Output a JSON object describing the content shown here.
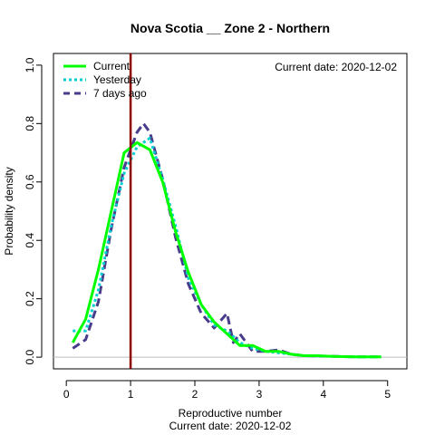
{
  "chart_data": {
    "type": "line",
    "title": "Nova Scotia __ Zone 2 - Northern",
    "xlabel": "Reproductive number",
    "xlabel_sub": "Current date:  2020-12-02",
    "ylabel": "Probability density",
    "annotation": "Current date:  2020-12-02",
    "xlim": [
      -0.2,
      5.3
    ],
    "ylim": [
      -0.04,
      1.04
    ],
    "xticks": [
      0,
      1,
      2,
      3,
      4,
      5
    ],
    "yticks": [
      0.0,
      0.2,
      0.4,
      0.6,
      0.8,
      1.0
    ],
    "ytick_labels": [
      "0.0",
      "0.2",
      "0.4",
      "0.6",
      "0.8",
      "1.0"
    ],
    "reference_line": {
      "x": 1.0,
      "color": "#8b0000"
    },
    "baseline": {
      "y": 0.0,
      "color": "#bebebe"
    },
    "legend_position": "top-left",
    "series": [
      {
        "name": "Current",
        "color": "#00ff00",
        "style": "solid",
        "x": [
          0.1,
          0.3,
          0.5,
          0.7,
          0.9,
          1.1,
          1.3,
          1.5,
          1.7,
          1.9,
          2.1,
          2.3,
          2.5,
          2.7,
          2.9,
          3.1,
          3.3,
          3.5,
          3.7,
          3.9,
          4.1,
          4.3,
          4.5,
          4.7,
          4.9
        ],
        "y": [
          0.05,
          0.13,
          0.3,
          0.5,
          0.7,
          0.735,
          0.71,
          0.6,
          0.43,
          0.29,
          0.18,
          0.12,
          0.08,
          0.04,
          0.04,
          0.02,
          0.02,
          0.01,
          0.005,
          0.005,
          0.003,
          0.002,
          0.001,
          0.001,
          0.001
        ]
      },
      {
        "name": "Yesterday",
        "color": "#00ced1",
        "style": "dotted",
        "x": [
          0.1,
          0.3,
          0.5,
          0.7,
          0.9,
          1.1,
          1.3,
          1.5,
          1.7,
          1.9,
          2.1,
          2.3,
          2.5,
          2.7,
          2.9,
          3.1,
          3.3,
          3.5,
          3.7,
          3.9,
          4.1,
          4.3,
          4.5,
          4.7,
          4.9
        ],
        "y": [
          0.09,
          0.09,
          0.23,
          0.45,
          0.63,
          0.72,
          0.75,
          0.61,
          0.45,
          0.27,
          0.18,
          0.11,
          0.09,
          0.05,
          0.03,
          0.02,
          0.015,
          0.01,
          0.005,
          0.004,
          0.003,
          0.002,
          0.001,
          0.001,
          0.001
        ]
      },
      {
        "name": "7 days ago",
        "color": "#483d8b",
        "style": "dashed",
        "x": [
          0.1,
          0.3,
          0.5,
          0.7,
          0.9,
          1.1,
          1.2,
          1.3,
          1.5,
          1.7,
          1.9,
          2.1,
          2.3,
          2.5,
          2.6,
          2.7,
          2.9,
          3.1,
          3.3,
          3.5,
          3.7,
          3.9,
          4.1,
          4.3,
          4.5,
          4.7,
          4.9
        ],
        "y": [
          0.03,
          0.06,
          0.19,
          0.44,
          0.65,
          0.77,
          0.8,
          0.77,
          0.61,
          0.41,
          0.25,
          0.15,
          0.1,
          0.15,
          0.05,
          0.08,
          0.02,
          0.02,
          0.025,
          0.01,
          0.005,
          0.004,
          0.003,
          0.002,
          0.001,
          0.001,
          0.001
        ]
      }
    ]
  }
}
